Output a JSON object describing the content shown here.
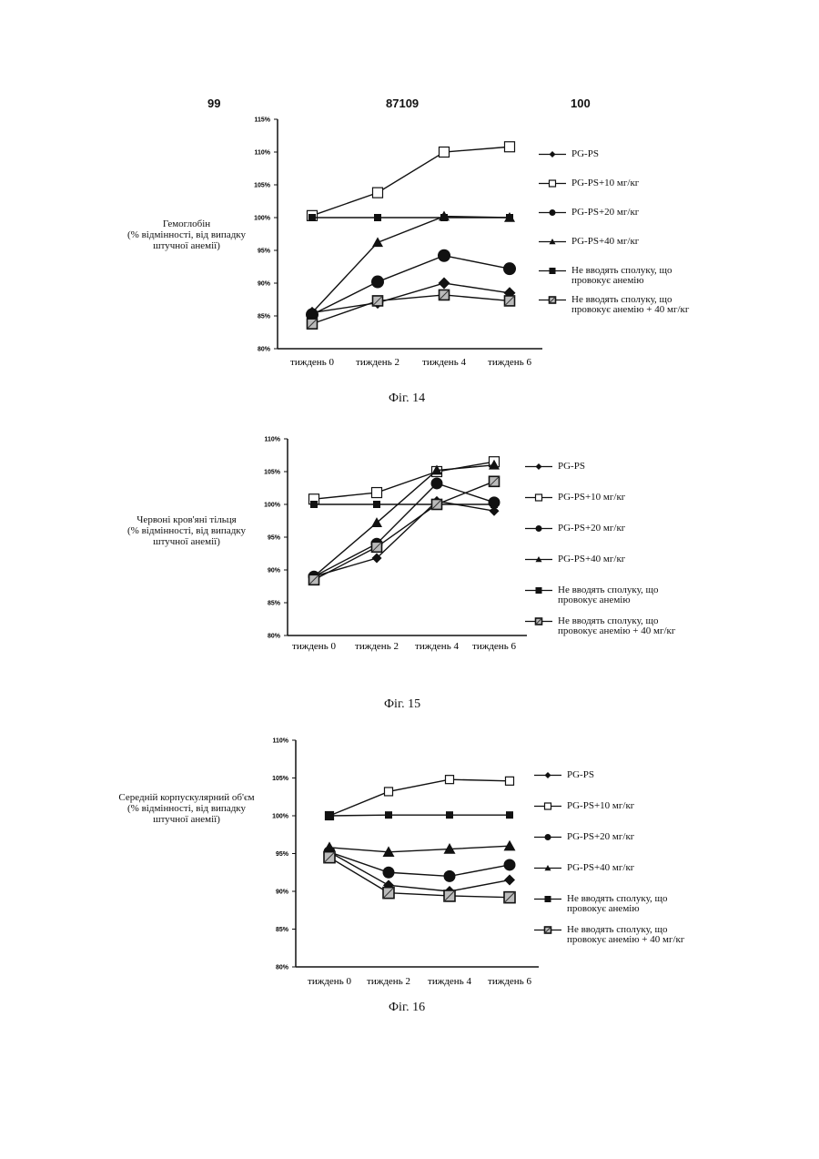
{
  "header": {
    "left": "99",
    "center": "87109",
    "right": "100"
  },
  "chart_data": [
    {
      "type": "line",
      "caption": "Фіг. 14",
      "ylabel": "Гемоглобін\n(% відмінності, від випадку\nштучної анемії)",
      "categories": [
        "тиждень 0",
        "тиждень 2",
        "тиждень 4",
        "тиждень 6"
      ],
      "yticks": [
        "80%",
        "85%",
        "90%",
        "95%",
        "100%",
        "105%",
        "110%",
        "115%"
      ],
      "ylim": [
        80,
        115
      ],
      "series": [
        {
          "name": "PG-PS",
          "marker": "diamond",
          "values": [
            85.5,
            87.0,
            90.0,
            88.5
          ]
        },
        {
          "name": "PG-PS+10 мг/кг",
          "marker": "open-square",
          "values": [
            100.3,
            103.8,
            110.0,
            110.8
          ]
        },
        {
          "name": "PG-PS+20 мг/кг",
          "marker": "circle",
          "values": [
            85.2,
            90.2,
            94.2,
            92.2
          ]
        },
        {
          "name": "PG-PS+40 мг/кг",
          "marker": "triangle",
          "values": [
            85.5,
            96.2,
            100.2,
            100.0
          ]
        },
        {
          "name": "Не вводять сполуку, що\nпровокує анемію",
          "marker": "filled-square",
          "values": [
            100.0,
            100.0,
            100.0,
            100.0
          ]
        },
        {
          "name": "Не вводять сполуку, що\nпровокує анемію + 40 мг/кг",
          "marker": "hatched-square",
          "values": [
            83.8,
            87.3,
            88.2,
            87.3
          ]
        }
      ]
    },
    {
      "type": "line",
      "caption": "Фіг. 15",
      "ylabel": "Червоні кров'яні тільця\n(% відмінності, від випадку\nштучної анемії)",
      "categories": [
        "тиждень 0",
        "тиждень 2",
        "тиждень 4",
        "тиждень 6"
      ],
      "yticks": [
        "80%",
        "85%",
        "90%",
        "95%",
        "100%",
        "105%",
        "110%"
      ],
      "ylim": [
        80,
        110
      ],
      "series": [
        {
          "name": "PG-PS",
          "marker": "diamond",
          "values": [
            89.0,
            91.8,
            100.5,
            99.0
          ]
        },
        {
          "name": "PG-PS+10 мг/кг",
          "marker": "open-square",
          "values": [
            100.8,
            101.8,
            105.0,
            106.5
          ]
        },
        {
          "name": "PG-PS+20 мг/кг",
          "marker": "circle",
          "values": [
            89.0,
            94.0,
            103.2,
            100.3
          ]
        },
        {
          "name": "PG-PS+40 мг/кг",
          "marker": "triangle",
          "values": [
            89.0,
            97.2,
            105.2,
            106.0
          ]
        },
        {
          "name": "Не вводять сполуку, що\nпровокує анемію",
          "marker": "filled-square",
          "values": [
            100.0,
            100.0,
            100.0,
            100.0
          ]
        },
        {
          "name": "Не вводять сполуку, що\nпровокує анемію + 40 мг/кг",
          "marker": "hatched-square",
          "values": [
            88.5,
            93.5,
            100.0,
            103.5
          ]
        }
      ]
    },
    {
      "type": "line",
      "caption": "Фіг. 16",
      "ylabel": "Середній корпускулярний об'єм\n(% відмінності, від випадку\nштучної анемії)",
      "categories": [
        "тиждень 0",
        "тиждень 2",
        "тиждень 4",
        "тиждень 6"
      ],
      "yticks": [
        "80%",
        "85%",
        "90%",
        "95%",
        "100%",
        "105%",
        "110%"
      ],
      "ylim": [
        80,
        110
      ],
      "series": [
        {
          "name": "PG-PS",
          "marker": "diamond",
          "values": [
            95.2,
            90.8,
            90.0,
            91.5
          ]
        },
        {
          "name": "PG-PS+10 мг/кг",
          "marker": "open-square",
          "values": [
            100.0,
            103.2,
            104.8,
            104.6
          ]
        },
        {
          "name": "PG-PS+20 мг/кг",
          "marker": "circle",
          "values": [
            95.2,
            92.5,
            92.0,
            93.5
          ]
        },
        {
          "name": "PG-PS+40 мг/кг",
          "marker": "triangle",
          "values": [
            95.8,
            95.2,
            95.6,
            96.0
          ]
        },
        {
          "name": "Не вводять сполуку, що\nпровокує анемію",
          "marker": "filled-square",
          "values": [
            100.0,
            100.1,
            100.1,
            100.1
          ]
        },
        {
          "name": "Не вводять сполуку, що\nпровокує анемію + 40 мг/кг",
          "marker": "hatched-square",
          "values": [
            94.5,
            89.8,
            89.4,
            89.2
          ]
        }
      ]
    }
  ]
}
